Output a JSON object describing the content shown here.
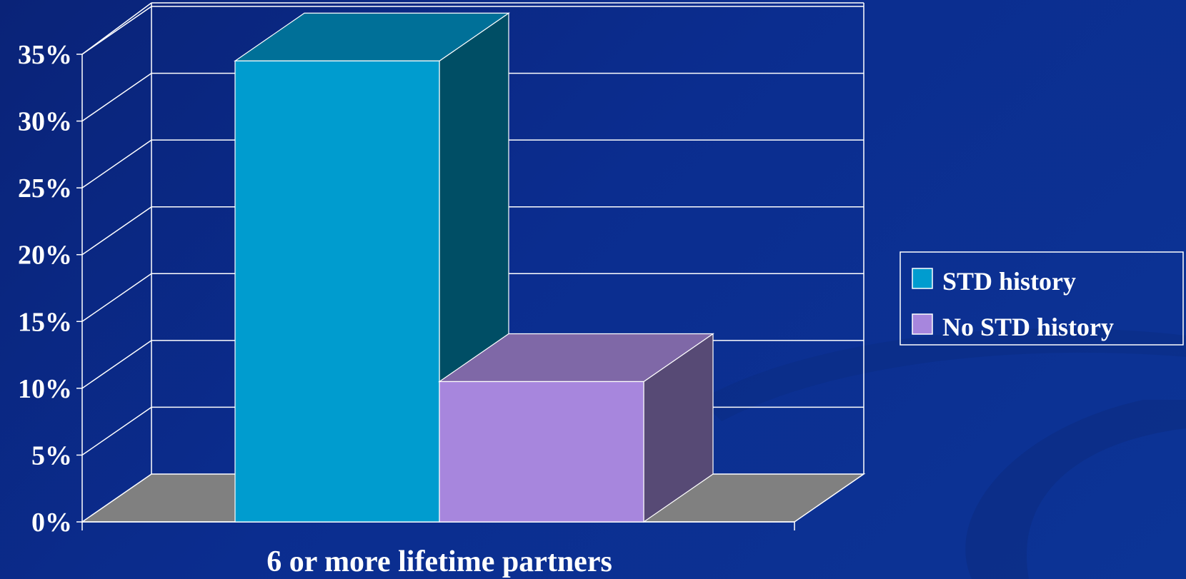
{
  "chart_data": {
    "type": "bar",
    "categories": [
      "6 or more lifetime partners"
    ],
    "series": [
      {
        "name": "STD history",
        "values": [
          34.5
        ],
        "color": "#009ccf",
        "top_color": "#007098",
        "side_color": "#004e65"
      },
      {
        "name": "No STD history",
        "values": [
          10.5
        ],
        "color": "#a786dd",
        "top_color": "#7f68a7",
        "side_color": "#574a75"
      }
    ],
    "ylim": [
      0,
      35
    ],
    "yticks": [
      "0%",
      "5%",
      "10%",
      "15%",
      "20%",
      "25%",
      "30%",
      "35%"
    ],
    "ytick_values": [
      0,
      5,
      10,
      15,
      20,
      25,
      30,
      35
    ],
    "xlabel": "",
    "ylabel": "",
    "grid": true,
    "legend": "right",
    "floor_color": "#808080",
    "gridline_color": "#ffffff",
    "decor_swirl_color": "#0c2c80"
  }
}
